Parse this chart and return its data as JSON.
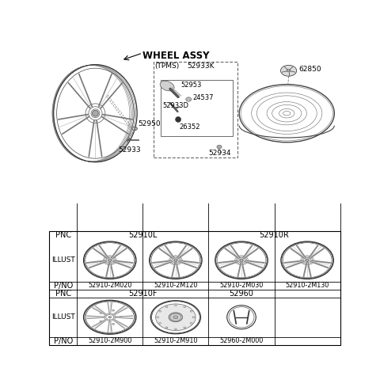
{
  "title": "WHEEL ASSY",
  "bg_color": "#ffffff",
  "table": {
    "row1_pnc_left": "52910L",
    "row1_pnc_right": "52910R",
    "row3_parts": [
      "52910-2M020",
      "52910-2M120",
      "52910-2M030",
      "52910-2M130"
    ],
    "row4_pnc_left": "52910F",
    "row4_pnc_right": "52960",
    "row6_parts": [
      "52910-2M900",
      "52910-2M910",
      "52960-2M000",
      ""
    ]
  },
  "labels": {
    "tpms": "(TPMS)",
    "p52933K": "52933K",
    "p52953": "52953",
    "p24537": "24537",
    "p52933D": "52933D",
    "p26352": "26352",
    "p52934": "52934",
    "p52950": "52950",
    "p52933": "52933",
    "p62850": "62850"
  }
}
